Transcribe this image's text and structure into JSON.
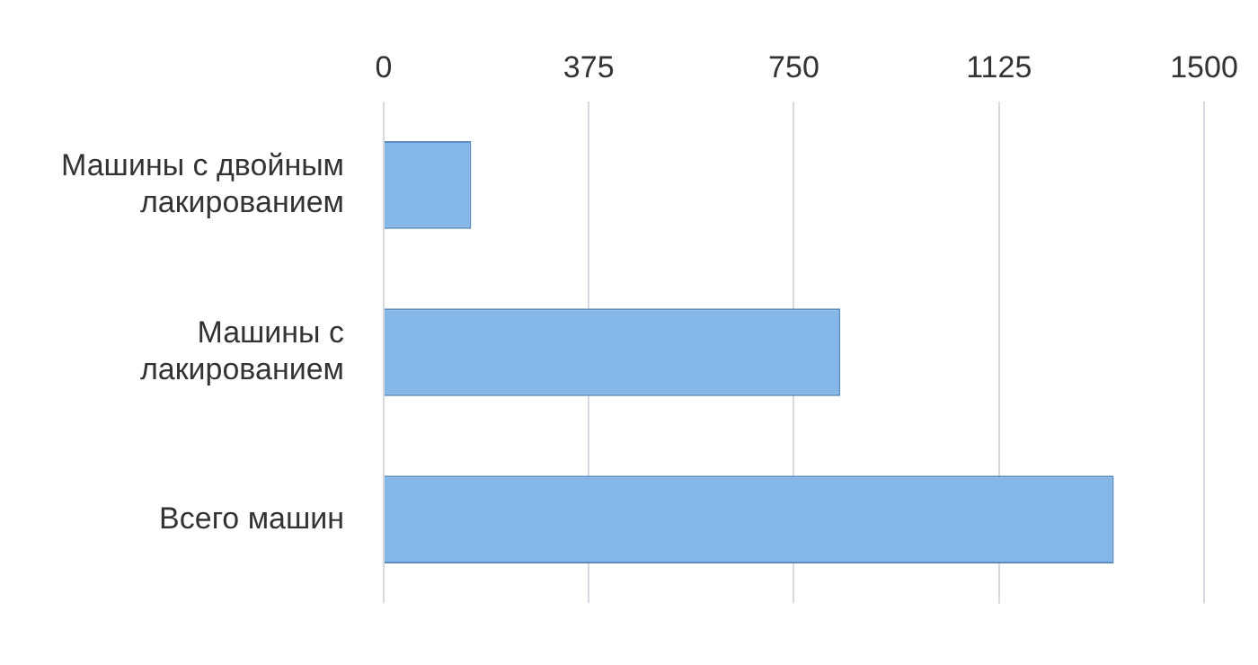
{
  "chart_data": {
    "type": "bar",
    "orientation": "horizontal",
    "categories": [
      "Машины с двойным лакированием",
      "Машины с лакированием",
      "Всего машин"
    ],
    "values": [
      160,
      835,
      1335
    ],
    "color": "#85b6e8",
    "xlim": [
      0,
      1500
    ],
    "xticks": [
      0,
      375,
      750,
      1125,
      1500
    ],
    "grid": "x",
    "legend": false
  }
}
